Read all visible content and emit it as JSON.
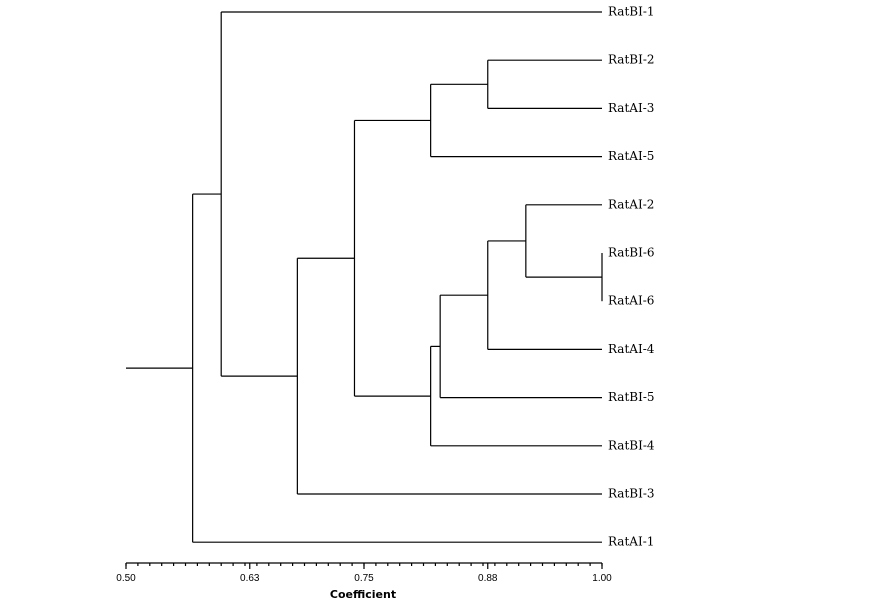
{
  "figure": {
    "axis_title": "Coefficient",
    "leaves": [
      "RatBI-1",
      "RatBI-2",
      "RatAI-3",
      "RatAI-5",
      "RatAI-2",
      "RatBI-6",
      "RatAI-6",
      "RatAI-4",
      "RatBI-5",
      "RatBI-4",
      "RatBI-3",
      "RatAI-1"
    ],
    "ticks": [
      {
        "value": 0.5,
        "label": "0.50"
      },
      {
        "value": 0.63,
        "label": "0.63"
      },
      {
        "value": 0.75,
        "label": "0.75"
      },
      {
        "value": 0.88,
        "label": "0.88"
      },
      {
        "value": 1.0,
        "label": "1.00"
      }
    ],
    "axis_range": [
      0.5,
      1.0
    ],
    "root_similarity": 0.57,
    "merges": [
      {
        "id": "n1",
        "children": [
          "RatBI-6",
          "RatAI-6"
        ],
        "similarity": 1.0
      },
      {
        "id": "n2",
        "children": [
          "RatAI-2",
          "n1"
        ],
        "similarity": 0.92
      },
      {
        "id": "n3",
        "children": [
          "n2",
          "RatAI-4"
        ],
        "similarity": 0.88
      },
      {
        "id": "n4",
        "children": [
          "n3",
          "RatBI-5"
        ],
        "similarity": 0.83
      },
      {
        "id": "n5",
        "children": [
          "n4",
          "RatBI-4"
        ],
        "similarity": 0.82
      },
      {
        "id": "n6",
        "children": [
          "RatBI-2",
          "RatAI-3"
        ],
        "similarity": 0.88
      },
      {
        "id": "n7",
        "children": [
          "n6",
          "RatAI-5"
        ],
        "similarity": 0.82
      },
      {
        "id": "n8",
        "children": [
          "n7",
          "n5"
        ],
        "similarity": 0.74
      },
      {
        "id": "n9",
        "children": [
          "n8",
          "RatBI-3"
        ],
        "similarity": 0.68
      },
      {
        "id": "n10",
        "children": [
          "RatBI-1",
          "n9"
        ],
        "similarity": 0.6
      },
      {
        "id": "n11",
        "children": [
          "n10",
          "RatAI-1"
        ],
        "similarity": 0.57
      }
    ]
  }
}
